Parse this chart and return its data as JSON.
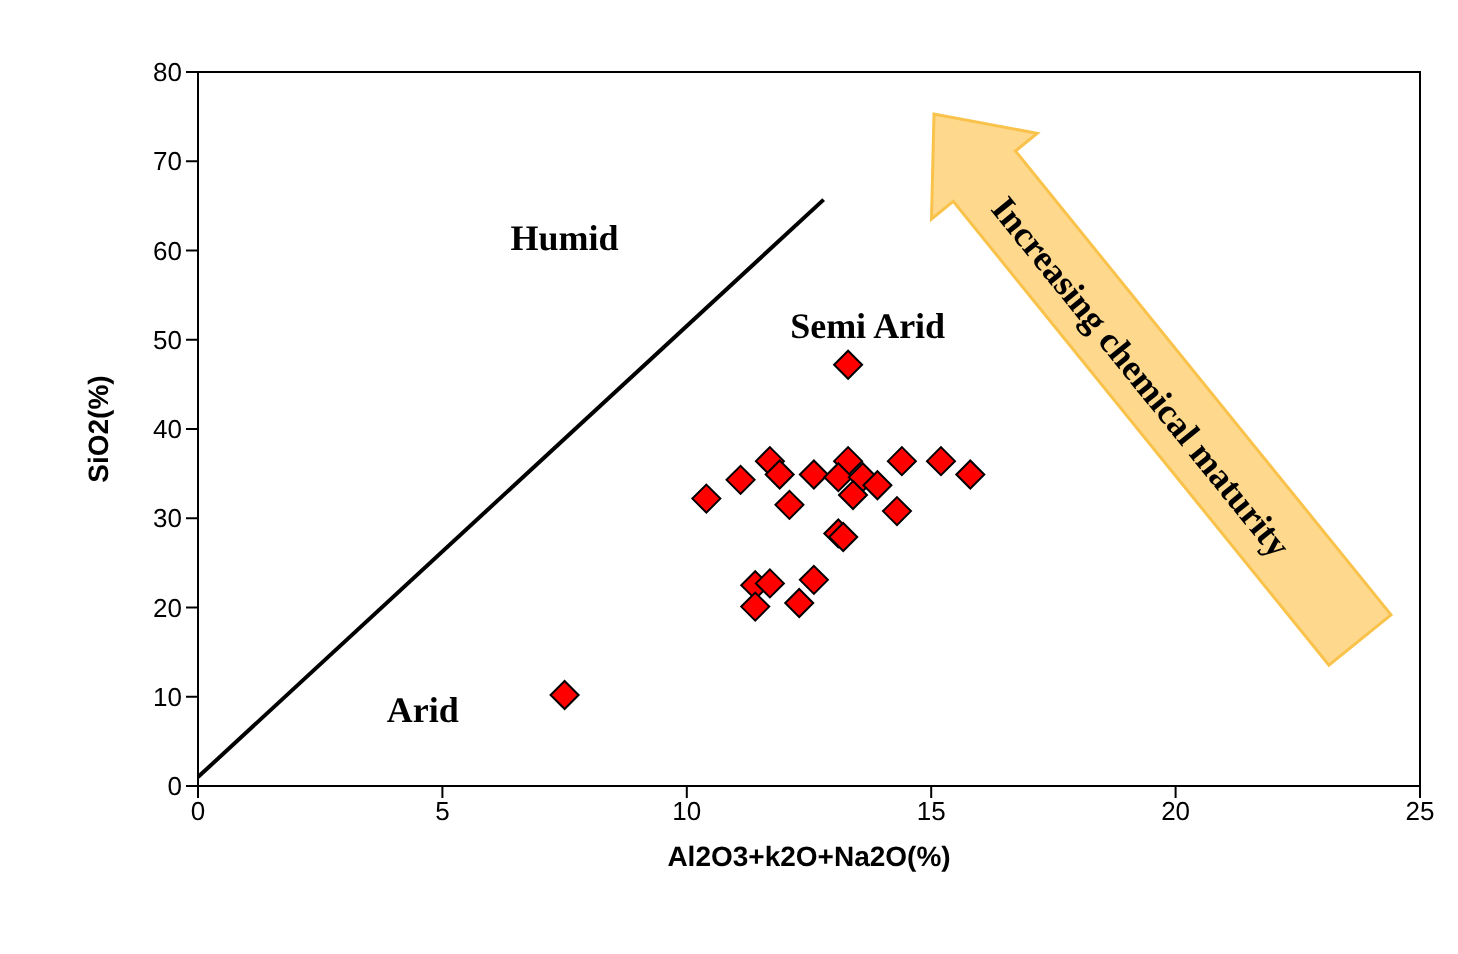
{
  "chart_data": {
    "type": "scatter",
    "xlabel": "Al2O3+k2O+Na2O(%)",
    "ylabel": "SiO2(%)",
    "xlim": [
      0,
      25
    ],
    "xticks": [
      0,
      5,
      10,
      15,
      20,
      25
    ],
    "ylim": [
      0,
      80
    ],
    "yticks": [
      0,
      10,
      20,
      30,
      40,
      50,
      60,
      70,
      80
    ],
    "marker": "diamond",
    "series": [
      {
        "type": "line",
        "marker": "none",
        "color": "#000000",
        "x": [
          0,
          12.8
        ],
        "values": [
          1,
          65.7
        ]
      },
      {
        "color": "#ff0000",
        "x": [
          13.3,
          7.5,
          10.4,
          11.1,
          11.7,
          11.9,
          12.1,
          12.6,
          13.3,
          13.1,
          13.6,
          13.4,
          13.9,
          14.3,
          14.4,
          15.2,
          15.8,
          13.1,
          13.2,
          11.4,
          11.7,
          11.4,
          12.6,
          12.3
        ],
        "values": [
          47.2,
          10.2,
          32.2,
          34.3,
          36.4,
          34.9,
          31.5,
          34.9,
          36.4,
          34.6,
          34.6,
          32.6,
          33.7,
          30.8,
          36.4,
          36.4,
          34.9,
          28.3,
          27.9,
          22.5,
          22.7,
          20.1,
          23.1,
          20.5
        ]
      }
    ],
    "annotations": [
      "Humid",
      "Semi Arid",
      "Arid",
      "Increasing chemical maturity"
    ]
  }
}
